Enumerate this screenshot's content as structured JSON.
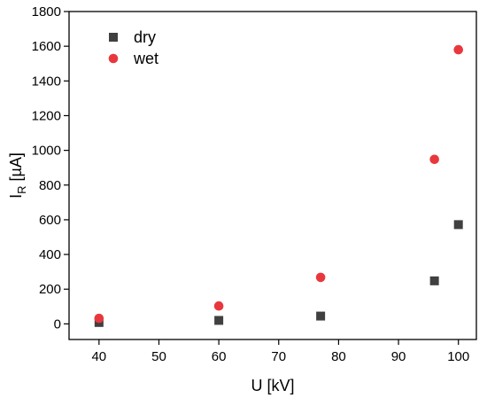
{
  "chart_data": {
    "type": "scatter",
    "title": "",
    "xlabel": "U [kV]",
    "ylabel": {
      "main": "I",
      "sub": "R",
      "unit": " [µA]"
    },
    "xlim": [
      35,
      103
    ],
    "ylim": [
      -90,
      1800
    ],
    "xticks": [
      40,
      50,
      60,
      70,
      80,
      90,
      100
    ],
    "yticks": [
      0,
      200,
      400,
      600,
      800,
      1000,
      1200,
      1400,
      1600,
      1800
    ],
    "grid": false,
    "legend_position": "top-left",
    "series": [
      {
        "name": "dry",
        "marker": "square",
        "color": "#404040",
        "points": [
          {
            "x": 40,
            "y": 8
          },
          {
            "x": 60,
            "y": 20
          },
          {
            "x": 77,
            "y": 45
          },
          {
            "x": 96,
            "y": 248
          },
          {
            "x": 100,
            "y": 572
          }
        ]
      },
      {
        "name": "wet",
        "marker": "circle",
        "color": "#e8383d",
        "points": [
          {
            "x": 40,
            "y": 32
          },
          {
            "x": 60,
            "y": 103
          },
          {
            "x": 77,
            "y": 268
          },
          {
            "x": 96,
            "y": 948
          },
          {
            "x": 100,
            "y": 1580
          }
        ]
      }
    ]
  }
}
